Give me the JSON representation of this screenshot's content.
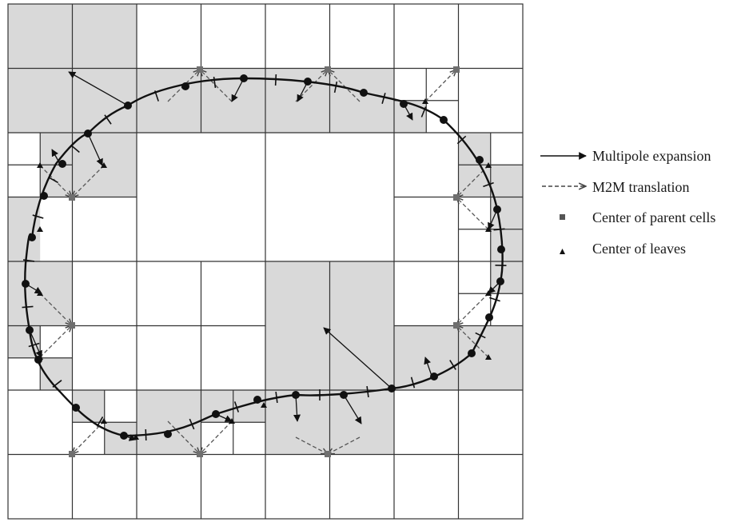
{
  "legend": {
    "items": [
      {
        "key": "multipole",
        "label": "Multipole expansion"
      },
      {
        "key": "m2m",
        "label": "M2M translation"
      },
      {
        "key": "parent",
        "label": "Center of parent cells"
      },
      {
        "key": "leaves",
        "label": "Center of leaves"
      }
    ]
  },
  "colors": {
    "shaded_cell": "#d9d9d9",
    "grid_line": "#333333",
    "boundary": "#111111",
    "parent_marker": "#6f6f6f",
    "leaf_marker": "#111111"
  }
}
